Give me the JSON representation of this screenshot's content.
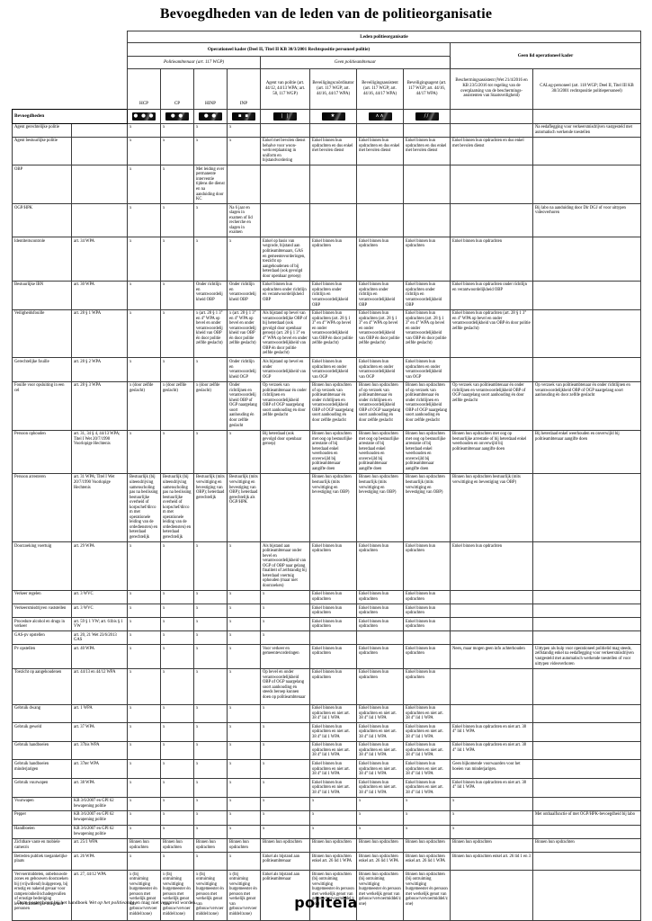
{
  "title": "Bevoegdheden van de leden van de politieorganisatie",
  "header": {
    "leden": "Leden politieorganisatie",
    "operationeel": "Operationeel kader (Deel II, Titel II KB 30/3/2001 Rechtspositie personeel politie)",
    "geen_lid": "Geen lid operationeel kader",
    "politieambtenaar": "Politieambtenaar (art. 117 WGP)",
    "geen_politieambtenaar": "Geen politieambtenaar",
    "bevoegdheden_label": "Bevoegdheden",
    "columns": [
      {
        "label": "HCP",
        "icon": "rank-hcp-icon",
        "glyph": "● ● ●"
      },
      {
        "label": "CP",
        "icon": "rank-cp-icon",
        "glyph": "● ●"
      },
      {
        "label": "HINP",
        "icon": "rank-hinp-icon",
        "glyph": "● ●"
      },
      {
        "label": "INP",
        "icon": "rank-inp-icon",
        "glyph": "▪ ▪"
      },
      {
        "label": "Agent van politie (art. 44/12, 44/13 WPA; art. 58, 117 WGP)",
        "icon": "agent-bars-icon",
        "glyph": "| |"
      },
      {
        "label": "Beveiligings­coördinator (art. 117 WGP; art. 44/16, 44/17 WPA)",
        "icon": "beveiligingscoordinator-emblem-icon",
        "glyph": "★"
      },
      {
        "label": "Beveiligingsassistent (art. 117 WGP; art. 44/16, 44/17 WPA)",
        "icon": "beveiligingsassistent-chevron-icon",
        "glyph": "∧∧"
      },
      {
        "label": "Beveiligingsagent (art. 117 WGP; art. 44/16, 44/17 WPA)",
        "icon": "beveiligingsagent-slashes-icon",
        "glyph": "//"
      },
      {
        "label": "Beschermingsassistent (Wet 21/4/2016 en KB 23/5/2016 tot regeling van de overplaatsing van de beschermings-assistenten van Staatsveiligheid)",
        "icon": "",
        "glyph": ""
      },
      {
        "label": "CALog-personeel (art. 118 WGP; Deel II, Titel III KB 30/3/2001 rechtspositie politiepersoneel)",
        "icon": "",
        "glyph": ""
      }
    ]
  },
  "rows": [
    {
      "label": "Agent gerechtelijke politie",
      "law": "",
      "cells": [
        "x",
        "x",
        "x",
        "x",
        "",
        "",
        "",
        "",
        "",
        "Na eedaflegging voor verkeersmisdrijven vastgesteld met automatisch werkende toestellen"
      ]
    },
    {
      "label": "Agent bestuurlijke politie",
      "law": "",
      "cells": [
        "x",
        "x",
        "x",
        "x",
        "Enkel met bevolen dienst behalve voor woon-werkverplaatsing in uniform en bijstandvordering",
        "Enkel binnen hun opdrachten en dus enkel met bevolen dienst",
        "Enkel binnen hun opdrachten en dus enkel met bevolen dienst",
        "Enkel binnen hun opdrachten en dus enkel met bevolen dienst",
        "Enkel binnen hun opdrachten en dus enkel met bevolen dienst",
        ""
      ]
    },
    {
      "label": "OBP",
      "law": "",
      "cells": [
        "x",
        "x",
        "Met leiding over permanente interventie tijdens die dienst en na aanduiding door KC",
        "",
        "",
        "",
        "",
        "",
        "",
        ""
      ]
    },
    {
      "label": "OGP/HPK",
      "law": "",
      "cells": [
        "x",
        "x",
        "x",
        "Na 6 jaar en slagen in examen of lid recherche en slagen in examen",
        "",
        "",
        "",
        "",
        "",
        "Bij labo na aanduiding door Dir DGJ of voor uittypen videoverhoren"
      ]
    },
    {
      "label": "Identiteitscontrole",
      "law": "art. 34 WPA",
      "cells": [
        "x",
        "x",
        "x",
        "x",
        "Enkel op basis van wegcode, bijstand aan politieambtenaars, GAS en gemeentevorderingen, toezicht op aangehoudenen of bij heterdaad (ook gevolgd door openbaar geroep)",
        "Enkel binnen hun opdrachten",
        "Enkel binnen hun opdrachten",
        "Enkel binnen hun opdrachten",
        "Enkel binnen hun opdrachten",
        ""
      ]
    },
    {
      "label": "Bestuurlijke IBN",
      "law": "art. 30 WPA",
      "cells": [
        "x",
        "x",
        "Onder richtlijn en verantwoordelijkheid OBP",
        "Onder richtlijn en verantwoordelijkheid OBP",
        "Enkel binnen hun opdrachten onder richtlijn en verantwoordelijkheid OBP",
        "Enkel binnen hun opdrachten onder richtlijn en verantwoordelijkheid OBP",
        "Enkel binnen hun opdrachten onder richtlijn en verantwoordelijkheid OBP",
        "Enkel binnen hun opdrachten onder richtlijn en verantwoordelijkheid OBP",
        "Enkel binnen hun opdrachten onder richtlijn en verantwoordelijkheid OBP",
        ""
      ]
    },
    {
      "label": "Veiligheidsfouille",
      "law": "art. 28 § 1 WPA",
      "cells": [
        "x",
        "x",
        "x (art. 28 § 1 3° en 4° WPA op bevel en onder verantwoordelijkheid van OBP én door politie zelfde geslacht)",
        "x (art. 28 § 1 3° en 4° WPA op bevel en onder verantwoordelijkheid van OBP én door politie zelfde geslacht)",
        "Als bijstand op bevel van verantwoordelijke OBP of bij heterdaad (ook gevolgd door openbaar geroep) (art. 28 § 1 3° en 4° WPA op bevel en onder verantwoordelijkheid van OBP én door politie zelfde geslacht)",
        "Enkel binnen hun opdrachten (art. 28 § 1 3° en 4° WPA op bevel en onder verantwoordelijkheid van OBP én door politie zelfde geslacht)",
        "Enkel binnen hun opdrachten (art. 28 § 1 3° en 4° WPA op bevel en onder verantwoordelijkheid van OBP én door politie zelfde geslacht)",
        "Enkel binnen hun opdrachten (art. 28 § 1 3° en 4° WPA op bevel en onder verantwoordelijkheid van OBP én door politie zelfde geslacht)",
        "Enkel binnen hun opdrachten (art. 28 § 1 3° en 4° WPA op bevel en onder verantwoordelijkheid van OBP én door politie zelfde geslacht)",
        ""
      ]
    },
    {
      "label": "Gerechtelijke fouille",
      "law": "art. 28 § 2 WPA",
      "cells": [
        "x",
        "x",
        "x",
        "Onder richtlijn en verantwoordelijkheid OGP",
        "Als bijstand op bevel en onder verantwoordelijkheid van OGP",
        "Enkel binnen hun opdrachten en onder verantwoordelijkheid van OGP",
        "Enkel binnen hun opdrachten en onder verantwoordelijkheid van OGP",
        "Enkel binnen hun opdrachten en onder verantwoordelijkheid van OGP",
        "",
        ""
      ]
    },
    {
      "label": "Fouille voor opsluiting in een cel",
      "law": "art. 28 § 3 WPA",
      "cells": [
        "x (door zelfde geslacht)",
        "x (door zelfde geslacht)",
        "x (door zelfde geslacht)",
        "Onder richtlijnen en verantwoordelijkheid OBP of OGP naargelang soort aanhouding én door zelfde geslacht",
        "Op verzoek van politieambtenaar én onder richtlijnen en verantwoordelijkheid OBP of OGP naargelang soort aanhouding én door zelfde geslacht",
        "Binnen hun opdrachten of op verzoek van politieambtenaar én onder richtlijnen en verantwoordelijkheid OBP of OGP naargelang soort aanhouding én door zelfde geslacht",
        "Binnen hun opdrachten of op verzoek van politieambtenaar én onder richtlijnen en verantwoordelijkheid OBP of OGP naargelang soort aanhouding én door zelfde geslacht",
        "Binnen hun opdrachten of op verzoek van politieambtenaar én onder richtlijnen en verantwoordelijkheid OBP of OGP naargelang soort aanhouding én door zelfde geslacht",
        "Op verzoek van politieambtenaar én onder richtlijnen en verantwoordelijkheid OBP of OGP naargelang soort aanhouding én door zelfde geslacht",
        "Op verzoek van politieambtenaar én onder richtlijnen en verantwoordelijkheid OBP of OGP naargelang soort aanhouding én door zelfde geslacht"
      ]
    },
    {
      "label": "Persoon ophouden",
      "law": "art. 31, 34 § 4, 44/13 WPA; Titel I Wet 20/7/1990 Voorlopige Hechtenis",
      "cells": [
        "x",
        "x",
        "x",
        "x",
        "Bij heterdaad (ook gevolgd door openbaar geroep)",
        "Binnen hun opdrachten met oog op bestuurlijke arrestatie of bij heterdaad enkel weerhouden en onverwijld bij politieambtenaar aangifte doen",
        "Binnen hun opdrachten met oog op bestuurlijke arrestatie of bij heterdaad enkel weerhouden en onverwijld bij politieambtenaar aangifte doen",
        "Binnen hun opdrachten met oog op bestuurlijke arrestatie of bij heterdaad enkel weerhouden en onverwijld bij politieambtenaar aangifte doen",
        "Binnen hun opdrachten met oog op bestuurlijke arrestatie of bij heterdaad enkel weerhouden en onverwijld bij politieambtenaar aangifte doen",
        "Bij heterdaad enkel weerhouden en onverwijld bij politieambtenaar aangifte doen"
      ]
    },
    {
      "label": "Persoon arresteren",
      "law": "art. 31 WPA; Titel I Wet 20/7/1990 Voorlopige Hechtenis",
      "cells": [
        "Bestuurlijk (bij uiteendrijving samenscholing pas na beslissing bestuurlijke overheid of korpschef/dircom met operationele leiding van de ordediensten) en heterdaad gerechtelijk",
        "Bestuurlijk (bij uiteendrijving samenscholing pas na beslissing bestuurlijke overheid of korpschef/dircom met operationele leiding van de ordediensten) en heterdaad gerechtelijk",
        "Bestuurlijk (mits verwittiging en bevestiging van OBP); heterdaad gerechtelijk",
        "Bestuurlijk (mits verwittiging en bevestiging van OBP); heterdaad gerechtelijk als OGP/HPK",
        "",
        "Binnen hun opdrachten bestuurlijk (mits verwittiging en bevestiging van OBP)",
        "Binnen hun opdrachten bestuurlijk (mits verwittiging en bevestiging van OBP)",
        "Binnen hun opdrachten bestuurlijk (mits verwittiging en bevestiging van OBP)",
        "Binnen hun opdrachten bestuurlijk (mits verwittiging en bevestiging van OBP)",
        ""
      ]
    },
    {
      "label": "Doorzoeking voertuig",
      "law": "art. 29 WPA",
      "cells": [
        "x",
        "x",
        "x",
        "x",
        "Als bijstand aan politieambtenaar onder bevel en verantwoordelijkheid van OGP of OBP naar gelang finaliteit of zelfstandig bij heterdaad voertuig ophouden (maar niet doorzoeken)",
        "Enkel binnen hun opdrachten",
        "Enkel binnen hun opdrachten",
        "Enkel binnen hun opdrachten",
        "Enkel binnen hun opdrachten",
        ""
      ]
    },
    {
      "label": "Verkeer regelen",
      "law": "art. 3 WVC",
      "cells": [
        "x",
        "x",
        "x",
        "x",
        "x",
        "Enkel binnen hun opdrachten",
        "Enkel binnen hun opdrachten",
        "Enkel binnen hun opdrachten",
        "",
        ""
      ]
    },
    {
      "label": "Verkeersmisdrijven vaststellen",
      "law": "art. 3 WVC",
      "cells": [
        "x",
        "x",
        "x",
        "x",
        "x",
        "Enkel binnen hun opdrachten",
        "Enkel binnen hun opdrachten",
        "Enkel binnen hun opdrachten",
        "",
        ""
      ]
    },
    {
      "label": "Procedure alcohol en drugs in verkeer",
      "law": "art. 59 § 1 VW; art. 61bis § 1 VW",
      "cells": [
        "x",
        "x",
        "x",
        "x",
        "x",
        "Enkel binnen hun opdrachten",
        "Enkel binnen hun opdrachten",
        "Enkel binnen hun opdrachten",
        "",
        ""
      ]
    },
    {
      "label": "GAS-pv opstellen",
      "law": "art. 20, 21 Wet 23/6/2013 GAS",
      "cells": [
        "x",
        "x",
        "x",
        "x",
        "x",
        "",
        "",
        "",
        "",
        ""
      ]
    },
    {
      "label": "Pv opstellen",
      "law": "art. 40 WPA",
      "cells": [
        "x",
        "x",
        "x",
        "x",
        "Voor verkeer en gemeentevorderingen",
        "Enkel binnen hun opdrachten",
        "Enkel binnen hun opdrachten",
        "Enkel binnen hun opdrachten",
        "Neen, maar mogen geen info achterhouden",
        "Uittypen als hulp voor operationeel politielid mag steeds, zelfstandig enkel na eedaflegging voor verkeersmisdrijven vastgesteld met automatisch werkende toestellen of voor uittypen videoverhoren"
      ]
    },
    {
      "label": "Toezicht op aangehoudenen",
      "law": "art. 44/13 en 44/12 WPA",
      "cells": [
        "x",
        "x",
        "x",
        "x",
        "Op bevel en onder verantwoordelijkheid OBP of OGP naargelang soort aanhouding én steeds beroep kunnen doen op politieambtenaar",
        "Enkel binnen hun opdrachten",
        "Enkel binnen hun opdrachten",
        "Enkel binnen hun opdrachten",
        "",
        ""
      ]
    },
    {
      "label": "Gebruik dwang",
      "law": "art. 1 WPA",
      "cells": [
        "x",
        "x",
        "x",
        "x",
        "x",
        "Enkel binnen hun opdrachten en niet art. 38 4° lid 1 WPA",
        "Enkel binnen hun opdrachten en niet art. 38 4° lid 1 WPA",
        "Enkel binnen hun opdrachten en niet art. 38 4° lid 1 WPA",
        "",
        ""
      ]
    },
    {
      "label": "Gebruik geweld",
      "law": "art. 37 WPA",
      "cells": [
        "x",
        "x",
        "x",
        "x",
        "x",
        "Enkel binnen hun opdrachten en niet art. 38 4° lid 1 WPA",
        "Enkel binnen hun opdrachten en niet art. 38 4° lid 1 WPA",
        "Enkel binnen hun opdrachten en niet art. 38 4° lid 1 WPA",
        "Enkel binnen hun opdrachten en niet art. 38 4° lid 1 WPA",
        ""
      ]
    },
    {
      "label": "Gebruik handboeien",
      "law": "art. 37bis WPA",
      "cells": [
        "x",
        "x",
        "x",
        "x",
        "x",
        "Enkel binnen hun opdrachten en niet art. 38 4° lid 1 WPA",
        "Enkel binnen hun opdrachten en niet art. 38 4° lid 1 WPA",
        "Enkel binnen hun opdrachten en niet art. 38 4° lid 1 WPA",
        "Enkel binnen hun opdrachten en niet art. 38 4° lid 1 WPA",
        ""
      ]
    },
    {
      "label": "Gebruik handboeien minderjarigen",
      "law": "art. 37ter WPA",
      "cells": [
        "x",
        "x",
        "x",
        "x",
        "x",
        "Enkel binnen hun opdrachten en niet art. 38 4° lid 1 WPA",
        "Enkel binnen hun opdrachten en niet art. 38 4° lid 1 WPA",
        "Enkel binnen hun opdrachten en niet art. 38 4° lid 1 WPA",
        "Geen bijkomende voorwaarden voor het boeien van minderjarigen.",
        ""
      ]
    },
    {
      "label": "Gebruik vuurwapen",
      "law": "art. 38 WPA",
      "cells": [
        "x",
        "x",
        "x",
        "x",
        "x",
        "Enkel binnen hun opdrachten en niet art. 38 4° lid 1 WPA",
        "Enkel binnen hun opdrachten en niet art. 38 4° lid 1 WPA",
        "Enkel binnen hun opdrachten en niet art. 38 4° lid 1 WPA",
        "Enkel binnen hun opdrachten en niet art. 38 4° lid 1 WPA",
        ""
      ]
    },
    {
      "label": "Vuurwapen",
      "law": "KB 3/6/2007 en GPI 62 bewapening politie",
      "cells": [
        "x",
        "x",
        "x",
        "x",
        "x",
        "x",
        "x",
        "x",
        "x",
        ""
      ]
    },
    {
      "label": "Pepper",
      "law": "KB 3/6/2007 en GPI 62 bewapening politie",
      "cells": [
        "x",
        "x",
        "x",
        "x",
        "x",
        "x",
        "x",
        "x",
        "x",
        "Met onthaalfunctie of met OGP/HPK-bevoegdheid bij labo"
      ]
    },
    {
      "label": "Handboeien",
      "law": "KB 3/6/2007 en GPI 62 bewapening politie",
      "cells": [
        "x",
        "x",
        "x",
        "x",
        "x",
        "x",
        "x",
        "x",
        "x",
        ""
      ]
    },
    {
      "label": "Zichtbare vaste en mobiele camera's",
      "law": "art. 25/1 WPA",
      "cells": [
        "Binnen hun opdrachten",
        "Binnen hun opdrachten",
        "Binnen hun opdrachten",
        "Binnen hun opdrachten",
        "Binnen hun opdrachten",
        "Binnen hun opdrachten",
        "Binnen hun opdrachten",
        "Binnen hun opdrachten",
        "Binnen hun opdrachten",
        "Binnen hun opdrachten"
      ]
    },
    {
      "label": "Betreden publiek toegankelijke plaats",
      "law": "art. 26 WPA",
      "cells": [
        "x",
        "x",
        "x",
        "x",
        "Enkel als bijstand aan politieambtenaar",
        "Binnen hun opdrachten enkel art. 26 lid 1 WPA",
        "Binnen hun opdrachten enkel art. 26 lid 1 WPA",
        "Binnen hun opdrachten enkel art. 26 lid 1 WPA",
        "Binnen hun opdrachten enkel art. 26 lid 1 en 3",
        ""
      ]
    },
    {
      "label": "Vervoermiddelen, onbebouwde zones en gebouwen doorzoeken bij (vrijwillend) hulpgeroep, bij ernstig en nakend gevaar voor rampen/onheil/schadegevallen of ernstige bedreiging leven/lichamelijke integriteit personen",
      "law": "art. 27, 44/12 WPA",
      "cells": [
        "x (bij ontruiming verwittiging burgemeester én persoon met werkelijk genot van gebouw/vervoermiddel/zone)",
        "x (bij ontruiming verwittiging burgemeester én persoon met werkelijk genot van gebouw/vervoermiddel/zone)",
        "x (bij ontruiming verwittiging burgemeester én persoon met werkelijk genot van gebouw/vervoermiddel/zone)",
        "x (bij ontruiming verwittiging burgemeester én persoon met werkelijk genot van gebouw/vervoermiddel/zone)",
        "Enkel als bijstand aan politieambtenaar",
        "Binnen hun opdrachten (bij ontruiming verwittiging burgemeester én persoon met werkelijk genot van gebouw/vervoermiddel/zone)",
        "Binnen hun opdrachten (bij ontruiming verwittiging burgemeester én persoon met werkelijk genot van gebouw/vervoermiddel/zone)",
        "Binnen hun opdrachten (bij ontruiming verwittiging burgemeester én persoon met werkelijk genot van gebouw/vervoermiddel/zone)",
        "",
        ""
      ]
    }
  ],
  "footer": {
    "note_prefix": "Deze poster hoort bij het handboek ",
    "note_italic": "Wet op het politieambt",
    "note_suffix": " en mag niet verspreid worden.",
    "logo": "politeia"
  }
}
